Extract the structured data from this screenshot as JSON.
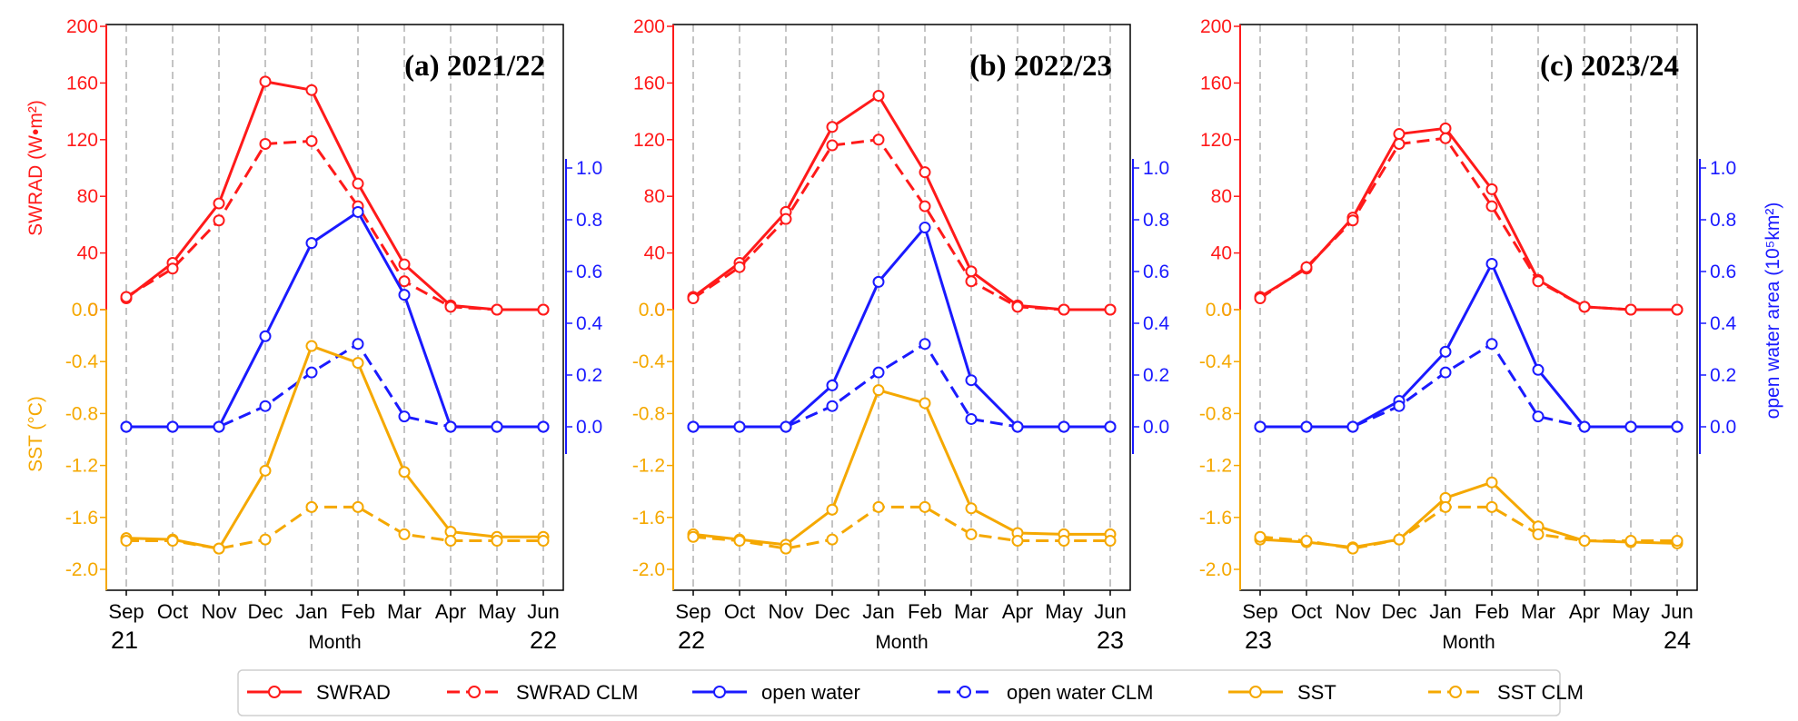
{
  "colors": {
    "swrad": "#ff1a1a",
    "open_water": "#1a1aff",
    "sst": "#f5a800",
    "grid": "#b0b0b0"
  },
  "chart_data": {
    "type": "line",
    "xlabel": "Month",
    "ylabel_left_top": "SWRAD (W•m²)",
    "ylabel_left_bottom": "SST (°C)",
    "ylabel_right": "open water area (10⁵km²)",
    "swrad_ticks": [
      "0",
      "40",
      "80",
      "120",
      "160",
      "200"
    ],
    "sst_ticks": [
      "0.0",
      "-0.4",
      "-0.8",
      "-1.2",
      "-1.6",
      "-2.0"
    ],
    "ow_ticks": [
      "0.0",
      "0.2",
      "0.4",
      "0.6",
      "0.8",
      "1.0"
    ],
    "ylim_swrad": [
      0,
      200
    ],
    "ylim_sst": [
      -2.0,
      0.0
    ],
    "ylim_open_water": [
      0,
      1.0
    ],
    "legend_position": "bottom-center",
    "legend": [
      "SWRAD",
      "SWRAD CLM",
      "open water",
      "open water CLM",
      "SST",
      "SST CLM"
    ],
    "panels": [
      {
        "title": "(a) 2021/22",
        "months": [
          "Sep",
          "Oct",
          "Nov",
          "Dec",
          "Jan",
          "Feb",
          "Mar",
          "Apr",
          "May",
          "Jun"
        ],
        "year_start": "21",
        "year_end": "22",
        "series": [
          {
            "name": "SWRAD",
            "values": [
              8,
              33,
              75,
              161,
              155,
              89,
              32,
              3,
              0,
              0
            ]
          },
          {
            "name": "SWRAD CLM",
            "values": [
              9,
              29,
              63,
              117,
              119,
              73,
              20,
              2,
              0,
              0
            ]
          },
          {
            "name": "open water",
            "values": [
              0,
              0,
              0,
              0.35,
              0.71,
              0.83,
              0.51,
              0,
              0,
              0
            ]
          },
          {
            "name": "open water CLM",
            "values": [
              0,
              0,
              0,
              0.08,
              0.21,
              0.32,
              0.04,
              0,
              0,
              0
            ]
          },
          {
            "name": "SST",
            "values": [
              -1.76,
              -1.77,
              -1.84,
              -1.24,
              -0.28,
              -0.41,
              -1.25,
              -1.71,
              -1.75,
              -1.75
            ]
          },
          {
            "name": "SST CLM",
            "values": [
              -1.78,
              -1.78,
              -1.84,
              -1.77,
              -1.52,
              -1.52,
              -1.73,
              -1.78,
              -1.78,
              -1.78
            ]
          }
        ]
      },
      {
        "title": "(b) 2022/23",
        "months": [
          "Sep",
          "Oct",
          "Nov",
          "Dec",
          "Jan",
          "Feb",
          "Mar",
          "Apr",
          "May",
          "Jun"
        ],
        "year_start": "22",
        "year_end": "23",
        "series": [
          {
            "name": "SWRAD",
            "values": [
              9,
              33,
              69,
              129,
              151,
              97,
              27,
              3,
              0,
              0
            ]
          },
          {
            "name": "SWRAD CLM",
            "values": [
              8,
              30,
              64,
              116,
              120,
              73,
              20,
              2,
              0,
              0
            ]
          },
          {
            "name": "open water",
            "values": [
              0,
              0,
              0,
              0.16,
              0.56,
              0.77,
              0.18,
              0,
              0,
              0
            ]
          },
          {
            "name": "open water CLM",
            "values": [
              0,
              0,
              0,
              0.08,
              0.21,
              0.32,
              0.03,
              0,
              0,
              0
            ]
          },
          {
            "name": "SST",
            "values": [
              -1.73,
              -1.77,
              -1.81,
              -1.54,
              -0.62,
              -0.72,
              -1.53,
              -1.72,
              -1.73,
              -1.73
            ]
          },
          {
            "name": "SST CLM",
            "values": [
              -1.75,
              -1.78,
              -1.84,
              -1.77,
              -1.52,
              -1.52,
              -1.73,
              -1.78,
              -1.78,
              -1.78
            ]
          }
        ]
      },
      {
        "title": "(c) 2023/24",
        "months": [
          "Sep",
          "Oct",
          "Nov",
          "Dec",
          "Jan",
          "Feb",
          "Mar",
          "Apr",
          "May",
          "Jun"
        ],
        "year_start": "23",
        "year_end": "24",
        "series": [
          {
            "name": "SWRAD",
            "values": [
              9,
              29,
              65,
              124,
              128,
              85,
              21,
              2,
              0,
              0
            ]
          },
          {
            "name": "SWRAD CLM",
            "values": [
              8,
              30,
              63,
              117,
              121,
              73,
              20,
              2,
              0,
              0
            ]
          },
          {
            "name": "open water",
            "values": [
              0,
              0,
              0,
              0.1,
              0.29,
              0.63,
              0.22,
              0,
              0,
              0
            ]
          },
          {
            "name": "open water CLM",
            "values": [
              0,
              0,
              0,
              0.08,
              0.21,
              0.32,
              0.04,
              0,
              0,
              0
            ]
          },
          {
            "name": "SST",
            "values": [
              -1.77,
              -1.79,
              -1.83,
              -1.77,
              -1.45,
              -1.33,
              -1.67,
              -1.78,
              -1.79,
              -1.8
            ]
          },
          {
            "name": "SST CLM",
            "values": [
              -1.75,
              -1.78,
              -1.84,
              -1.77,
              -1.52,
              -1.52,
              -1.73,
              -1.78,
              -1.78,
              -1.78
            ]
          }
        ]
      }
    ]
  }
}
